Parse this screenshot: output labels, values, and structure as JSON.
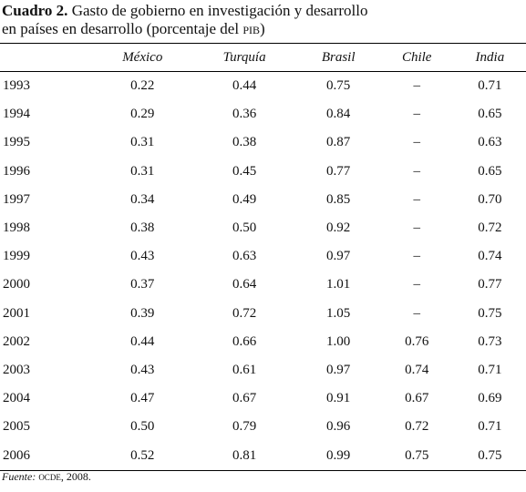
{
  "title": {
    "label": "Cuadro 2.",
    "line1": "Gasto de gobierno en investigación y desarrollo",
    "line2": "en países en desarrollo (porcentaje del",
    "abbr": "PIB",
    "close": ")"
  },
  "table": {
    "header": [
      "México",
      "Turquía",
      "Brasil",
      "Chile",
      "India"
    ],
    "rows": [
      [
        "1993",
        "0.22",
        "0.44",
        "0.75",
        "–",
        "0.71"
      ],
      [
        "1994",
        "0.29",
        "0.36",
        "0.84",
        "–",
        "0.65"
      ],
      [
        "1995",
        "0.31",
        "0.38",
        "0.87",
        "–",
        "0.63"
      ],
      [
        "1996",
        "0.31",
        "0.45",
        "0.77",
        "–",
        "0.65"
      ],
      [
        "1997",
        "0.34",
        "0.49",
        "0.85",
        "–",
        "0.70"
      ],
      [
        "1998",
        "0.38",
        "0.50",
        "0.92",
        "–",
        "0.72"
      ],
      [
        "1999",
        "0.43",
        "0.63",
        "0.97",
        "–",
        "0.74"
      ],
      [
        "2000",
        "0.37",
        "0.64",
        "1.01",
        "–",
        "0.77"
      ],
      [
        "2001",
        "0.39",
        "0.72",
        "1.05",
        "–",
        "0.75"
      ],
      [
        "2002",
        "0.44",
        "0.66",
        "1.00",
        "0.76",
        "0.73"
      ],
      [
        "2003",
        "0.43",
        "0.61",
        "0.97",
        "0.74",
        "0.71"
      ],
      [
        "2004",
        "0.47",
        "0.67",
        "0.91",
        "0.67",
        "0.69"
      ],
      [
        "2005",
        "0.50",
        "0.79",
        "0.96",
        "0.72",
        "0.71"
      ],
      [
        "2006",
        "0.52",
        "0.81",
        "0.99",
        "0.75",
        "0.75"
      ]
    ]
  },
  "source": {
    "label": "Fuente:",
    "org": "OCDE",
    "rest": ", 2008."
  }
}
